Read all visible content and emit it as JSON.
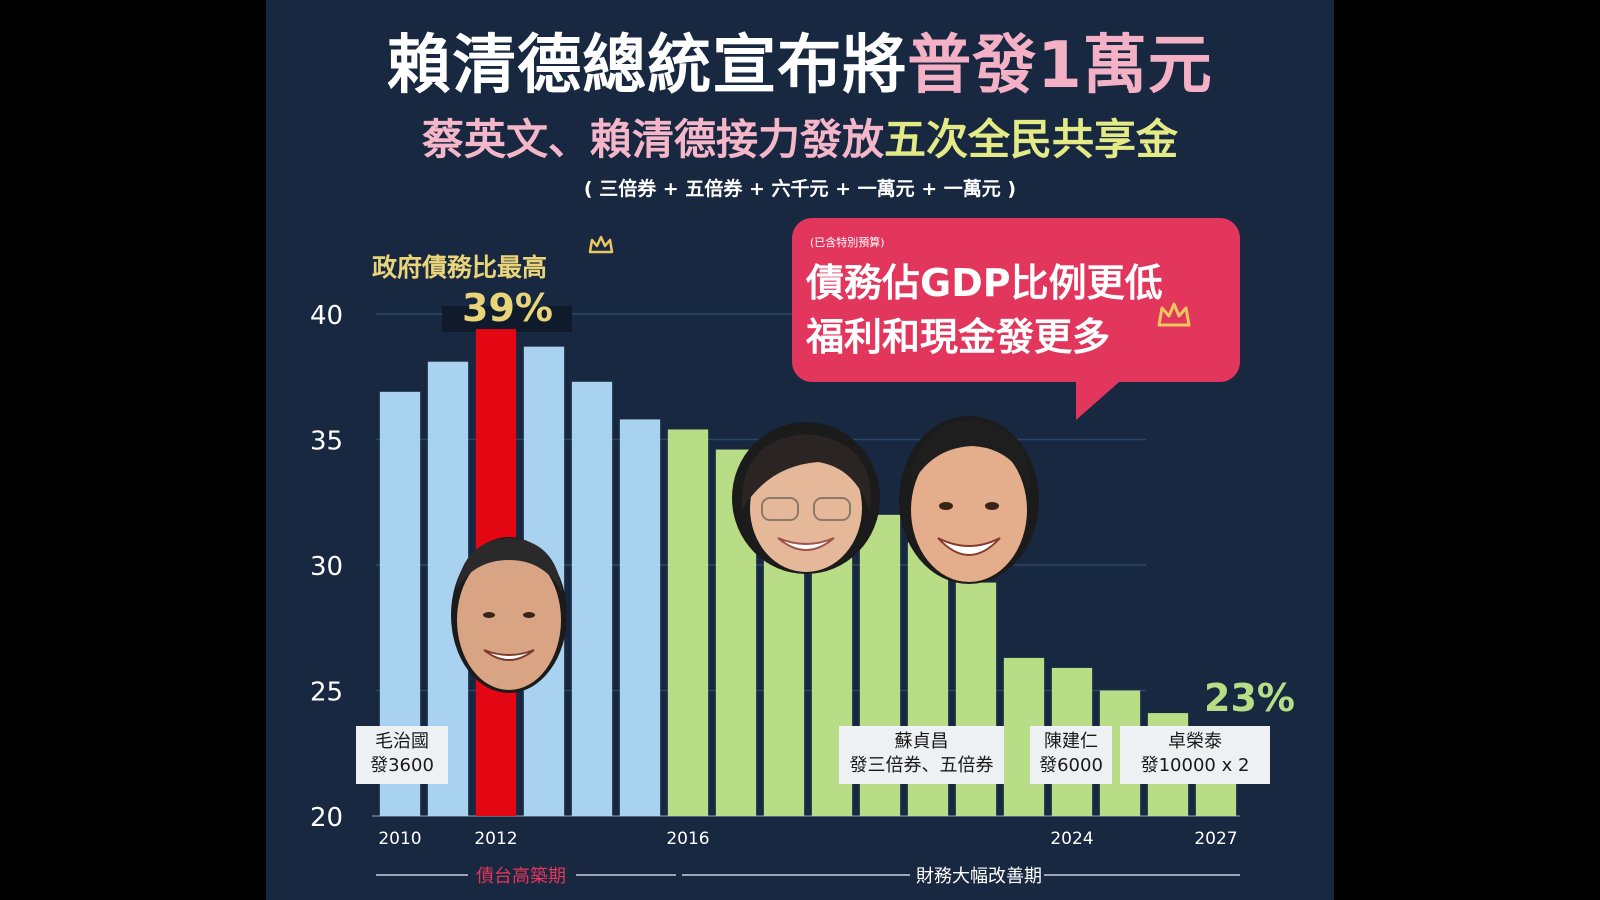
{
  "header": {
    "title_main": "賴清德總統宣布將",
    "title_highlight": "普發1萬元",
    "subtitle_main": "蔡英文、賴清德接力發放",
    "subtitle_highlight": "五次全民共享金",
    "note": "( 三倍券 + 五倍券 + 六千元 + 一萬元 + 一萬元 )"
  },
  "colors": {
    "background": "#172840",
    "bar_blue": "#a9d2f0",
    "bar_red": "#e30613",
    "bar_green": "#b9dd86",
    "accent_pink": "#e2365d",
    "accent_yellow": "#e9d47a"
  },
  "annotations": {
    "peak_label": "政府債務比最高",
    "peak_value": "39%",
    "end_value": "23%",
    "bubble_small": "(已含特別預算)",
    "bubble_line1": "債務佔GDP比例更低",
    "bubble_line2": "福利和現金發更多",
    "period_1": "債台高築期",
    "period_2": "財務大幅改善期"
  },
  "premier_boxes": [
    {
      "name": "毛治國",
      "detail": "發3600"
    },
    {
      "name": "蘇貞昌",
      "detail": "發三倍券、五倍券"
    },
    {
      "name": "陳建仁",
      "detail": "發6000"
    },
    {
      "name": "卓榮泰",
      "detail": "發10000 x 2"
    }
  ],
  "icons": [
    "crown-icon",
    "ma-face",
    "tsai-face",
    "lai-face"
  ],
  "chart_data": {
    "type": "bar",
    "x": [
      2010,
      2011,
      2012,
      2013,
      2014,
      2015,
      2016,
      2017,
      2018,
      2019,
      2020,
      2021,
      2022,
      2023,
      2024,
      2025,
      2026,
      2027
    ],
    "values": [
      36.9,
      38.1,
      39.4,
      38.7,
      37.3,
      35.8,
      35.4,
      34.6,
      33.0,
      32.2,
      32.0,
      30.9,
      29.3,
      26.3,
      25.9,
      25.0,
      24.1,
      23.0
    ],
    "bar_colors": [
      "blue",
      "blue",
      "red",
      "blue",
      "blue",
      "blue",
      "green",
      "green",
      "green",
      "green",
      "green",
      "green",
      "green",
      "green",
      "green",
      "green",
      "green",
      "green"
    ],
    "x_tick_labels": [
      {
        "x": 2010,
        "label": "2010"
      },
      {
        "x": 2012,
        "label": "2012"
      },
      {
        "x": 2016,
        "label": "2016"
      },
      {
        "x": 2024,
        "label": "2024"
      },
      {
        "x": 2027,
        "label": "2027"
      }
    ],
    "y_ticks": [
      "20",
      "25",
      "30",
      "35",
      "40"
    ],
    "ylim": [
      20,
      40
    ],
    "grid": true,
    "xlabel": "",
    "ylabel": ""
  }
}
